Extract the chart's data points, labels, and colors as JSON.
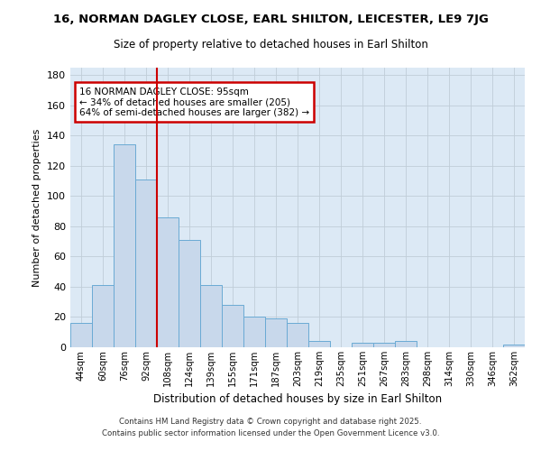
{
  "title": "16, NORMAN DAGLEY CLOSE, EARL SHILTON, LEICESTER, LE9 7JG",
  "subtitle": "Size of property relative to detached houses in Earl Shilton",
  "xlabel": "Distribution of detached houses by size in Earl Shilton",
  "ylabel": "Number of detached properties",
  "bar_labels": [
    "44sqm",
    "60sqm",
    "76sqm",
    "92sqm",
    "108sqm",
    "124sqm",
    "139sqm",
    "155sqm",
    "171sqm",
    "187sqm",
    "203sqm",
    "219sqm",
    "235sqm",
    "251sqm",
    "267sqm",
    "283sqm",
    "298sqm",
    "314sqm",
    "330sqm",
    "346sqm",
    "362sqm"
  ],
  "bar_values": [
    16,
    41,
    134,
    111,
    86,
    71,
    41,
    28,
    20,
    19,
    16,
    4,
    0,
    3,
    3,
    4,
    0,
    0,
    0,
    0,
    2
  ],
  "bar_color": "#c8d8eb",
  "bar_edge_color": "#6aaad4",
  "background_color": "#dce9f5",
  "grid_color": "#c0cdd8",
  "vline_x_index": 3,
  "vline_color": "#cc0000",
  "annotation_text": "16 NORMAN DAGLEY CLOSE: 95sqm\n← 34% of detached houses are smaller (205)\n64% of semi-detached houses are larger (382) →",
  "annotation_box_color": "white",
  "annotation_box_edge_color": "#cc0000",
  "ylim": [
    0,
    185
  ],
  "yticks": [
    0,
    20,
    40,
    60,
    80,
    100,
    120,
    140,
    160,
    180
  ],
  "title_fontsize": 9.5,
  "subtitle_fontsize": 8.5,
  "footer1": "Contains HM Land Registry data © Crown copyright and database right 2025.",
  "footer2": "Contains public sector information licensed under the Open Government Licence v3.0."
}
